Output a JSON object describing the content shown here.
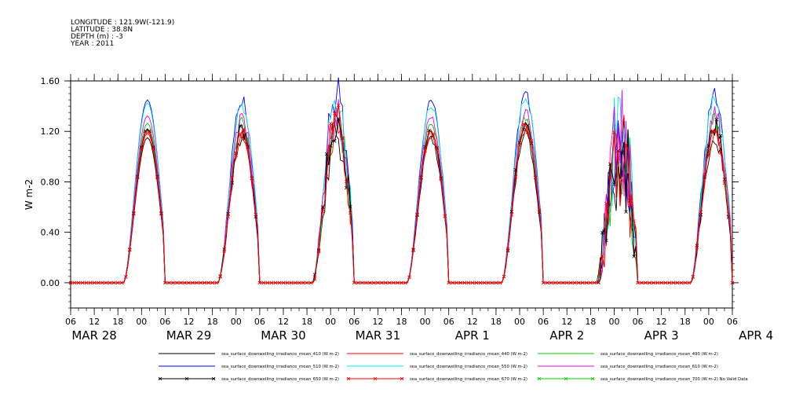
{
  "header": {
    "longitude": "LONGITUDE : 121.9W(-121.9)",
    "latitude": "LATITUDE : 38.8N",
    "depth": "DEPTH (m) : -3",
    "year": "YEAR : 2011"
  },
  "chart_data": {
    "type": "line",
    "ylabel": "W m-2",
    "ylim": [
      -0.2,
      1.6
    ],
    "yticks": [
      "0.00",
      "0.40",
      "0.80",
      "1.20",
      "1.60"
    ],
    "x_hour_ticks": [
      "06",
      "12",
      "18",
      "00",
      "06",
      "12",
      "18",
      "00",
      "06",
      "12",
      "18",
      "00",
      "06",
      "12",
      "18",
      "00",
      "06",
      "12",
      "18",
      "00",
      "06",
      "12",
      "18",
      "00",
      "06",
      "12",
      "18",
      "00",
      "06"
    ],
    "date_labels": [
      "MAR 28",
      "MAR 29",
      "MAR 30",
      "MAR 31",
      "APR  1",
      "APR  2",
      "APR  3",
      "APR  4"
    ],
    "x_start": "2011-03-28 06:00",
    "x_end": "2011-04-04 06:00",
    "grid": false,
    "legend_position": "bottom",
    "days": [
      {
        "date": "MAR 28",
        "peak": 1.15,
        "noise": 0.0
      },
      {
        "date": "MAR 29",
        "peak": 1.14,
        "noise": 0.06
      },
      {
        "date": "MAR 30",
        "peak": 1.2,
        "noise": 0.18
      },
      {
        "date": "MAR 31",
        "peak": 1.14,
        "noise": 0.03
      },
      {
        "date": "APR  1",
        "peak": 1.18,
        "noise": 0.04
      },
      {
        "date": "APR  2",
        "peak": 1.0,
        "noise": 0.45
      },
      {
        "date": "APR  3",
        "peak": 1.17,
        "noise": 0.08
      }
    ],
    "daylight_hours": [
      13.5,
      25.5
    ],
    "series": [
      {
        "name": "sea_surface_downwelling_irradiance_mean_410 (W m-2)",
        "color": "#000000",
        "scale": 1.0,
        "marker": false
      },
      {
        "name": "sea_surface_downwelling_irradiance_mean_440 (W m-2)",
        "color": "#ff0000",
        "scale": 1.03,
        "marker": false
      },
      {
        "name": "sea_surface_downwelling_irradiance_mean_490 (W m-2)",
        "color": "#00cc00",
        "scale": 1.1,
        "marker": false
      },
      {
        "name": "sea_surface_downwelling_irradiance_mean_510 (W m-2)",
        "color": "#0000ff",
        "scale": 1.26,
        "marker": false
      },
      {
        "name": "sea_surface_downwelling_irradiance_mean_550 (W m-2)",
        "color": "#00e5ee",
        "scale": 1.24,
        "marker": false
      },
      {
        "name": "sea_surface_downwelling_irradiance_mean_610 (W m-2)",
        "color": "#ee00ee",
        "scale": 1.15,
        "marker": false
      },
      {
        "name": "sea_surface_downwelling_irradiance_mean_650 (W m-2)",
        "color": "#000000",
        "scale": 1.06,
        "marker": true
      },
      {
        "name": "sea_surface_downwelling_irradiance_mean_670 (W m-2)",
        "color": "#ff0000",
        "scale": 1.05,
        "marker": true
      },
      {
        "name": "sea_surface_downwelling_irradiance_mean_700 (W m-2) No Valid Data",
        "color": "#00cc00",
        "scale": 0,
        "marker": true
      }
    ]
  }
}
